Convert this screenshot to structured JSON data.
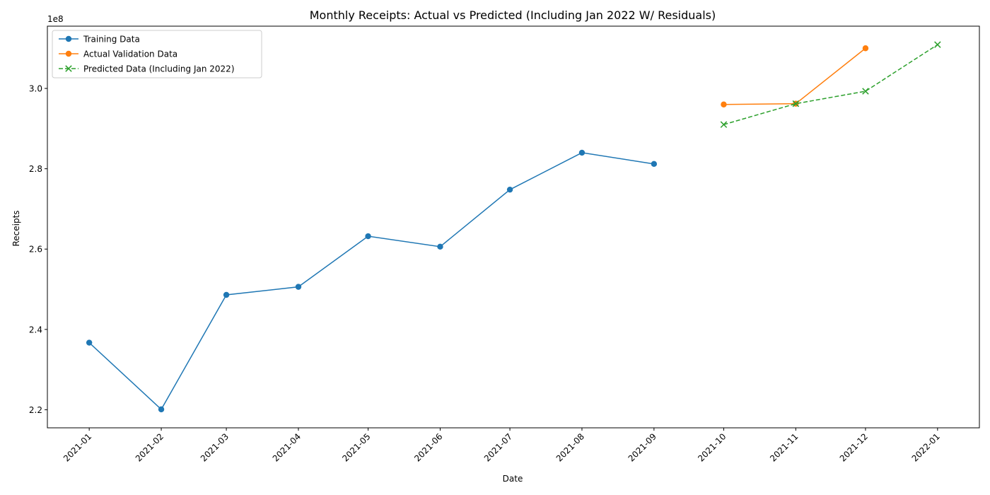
{
  "chart_data": {
    "type": "line",
    "title": "Monthly Receipts: Actual vs Predicted (Including Jan 2022 W/ Residuals)",
    "xlabel": "Date",
    "ylabel": "Receipts",
    "y_offset_label": "1e8",
    "y_scale_factor": 100000000,
    "ylim": [
      215500000,
      315500000
    ],
    "y_ticks": [
      220000000,
      240000000,
      260000000,
      280000000,
      300000000
    ],
    "y_tick_labels": [
      "2.2",
      "2.4",
      "2.6",
      "2.8",
      "3.0"
    ],
    "x_ticks": [
      "2021-01",
      "2021-02",
      "2021-03",
      "2021-04",
      "2021-05",
      "2021-06",
      "2021-07",
      "2021-08",
      "2021-09",
      "2021-10",
      "2021-11",
      "2021-12",
      "2022-01"
    ],
    "x_range": [
      "2020-12-14",
      "2022-01-19"
    ],
    "legend_position": "upper-left",
    "grid": false,
    "series": [
      {
        "name": "Training Data",
        "color": "#1f77b4",
        "line_style": "solid",
        "marker": "circle",
        "x": [
          "2021-01-01",
          "2021-02-01",
          "2021-03-01",
          "2021-04-01",
          "2021-05-01",
          "2021-06-01",
          "2021-07-01",
          "2021-08-01",
          "2021-09-01"
        ],
        "values": [
          236700000,
          220100000,
          248600000,
          250600000,
          263200000,
          260600000,
          274800000,
          284000000,
          281200000
        ]
      },
      {
        "name": "Actual Validation Data",
        "color": "#ff7f0e",
        "line_style": "solid",
        "marker": "circle",
        "x": [
          "2021-10-01",
          "2021-11-01",
          "2021-12-01"
        ],
        "values": [
          296000000,
          296200000,
          310000000
        ]
      },
      {
        "name": "Predicted Data (Including Jan 2022)",
        "color": "#2ca02c",
        "line_style": "dashed",
        "marker": "x",
        "x": [
          "2021-10-01",
          "2021-11-01",
          "2021-12-01",
          "2022-01-01"
        ],
        "values": [
          291000000,
          296200000,
          299300000,
          310900000
        ]
      }
    ]
  }
}
